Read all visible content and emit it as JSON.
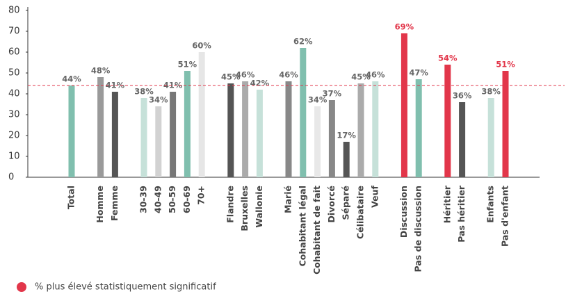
{
  "chart_data": {
    "type": "bar",
    "categories": [
      "Total",
      "Homme",
      "Femme",
      "30-39",
      "40-49",
      "50-59",
      "60-69",
      "70+",
      "Flandre",
      "Bruxelles",
      "Wallonie",
      "Marié",
      "Cohabitant légal",
      "Cohabitant de fait",
      "Divorcé",
      "Séparé",
      "Célibataire",
      "Veuf",
      "Discussion",
      "Pas de discussion",
      "Héritier",
      "Pas héritier",
      "Enfants",
      "Pas d'enfant"
    ],
    "values": [
      44,
      48,
      41,
      38,
      34,
      41,
      51,
      60,
      45,
      46,
      42,
      46,
      62,
      34,
      37,
      17,
      45,
      46,
      69,
      47,
      54,
      36,
      38,
      51
    ],
    "value_labels": [
      "44%",
      "48%",
      "41%",
      "38%",
      "34%",
      "41%",
      "51%",
      "60%",
      "45%",
      "46%",
      "42%",
      "46%",
      "62%",
      "34%",
      "37%",
      "17%",
      "45%",
      "46%",
      "69%",
      "47%",
      "54%",
      "36%",
      "38%",
      "51%"
    ],
    "colors": [
      "#80bfae",
      "#9a9a9a",
      "#555555",
      "#c6e1d9",
      "#d2d2d2",
      "#777777",
      "#80bfae",
      "#e6e6e6",
      "#555555",
      "#ababab",
      "#c6e1d9",
      "#888888",
      "#80bfae",
      "#e8e8e8",
      "#888888",
      "#555555",
      "#ababab",
      "#c6e1d9",
      "#e2364a",
      "#80bfae",
      "#e2364a",
      "#555555",
      "#c6e1d9",
      "#e2364a"
    ],
    "highlight_color": "#e2364a",
    "reference_line": 44,
    "legend": "% plus élevé statistiquement significatif",
    "ylim": [
      0,
      80
    ],
    "yticks": [
      0,
      10,
      20,
      30,
      40,
      50,
      60,
      70,
      80
    ]
  }
}
